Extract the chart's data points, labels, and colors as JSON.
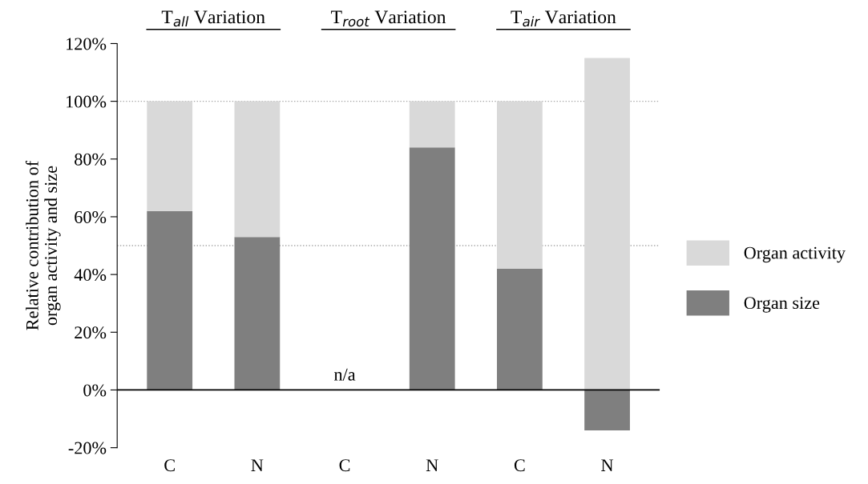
{
  "chart_data": {
    "type": "bar",
    "stacked": true,
    "ylabel": "Relative contribution of\norgan activity and size",
    "categories": [
      "C",
      "N",
      "C",
      "N",
      "C",
      "N"
    ],
    "series": [
      {
        "name": "Organ size",
        "color": "#7f7f7f",
        "values": [
          62,
          53,
          0,
          84,
          42,
          -14
        ]
      },
      {
        "name": "Organ activity",
        "color": "#d9d9d9",
        "values": [
          38,
          47,
          0,
          16,
          58,
          115
        ]
      }
    ],
    "annotations": [
      "T$_{all}$ Variation",
      "T$_{root}$ Variation",
      "T$_{air}$ Variation",
      "n/a"
    ],
    "ylim": [
      -20,
      120
    ],
    "yticks": [
      {
        "value": -20,
        "label": "-20%"
      },
      {
        "value": 0,
        "label": "0%"
      },
      {
        "value": 20,
        "label": "20%"
      },
      {
        "value": 40,
        "label": "40%"
      },
      {
        "value": 60,
        "label": "60%"
      },
      {
        "value": 80,
        "label": "80%"
      },
      {
        "value": 100,
        "label": "100%"
      },
      {
        "value": 120,
        "label": "120%"
      }
    ],
    "ref_lines": [
      {
        "axis": "y",
        "value": 100,
        "color": "#a6a6a6",
        "line_style": "dotted"
      },
      {
        "axis": "y",
        "value": 50,
        "color": "#a6a6a6",
        "line_style": "dotted"
      }
    ],
    "legend": "right",
    "grid": false
  }
}
